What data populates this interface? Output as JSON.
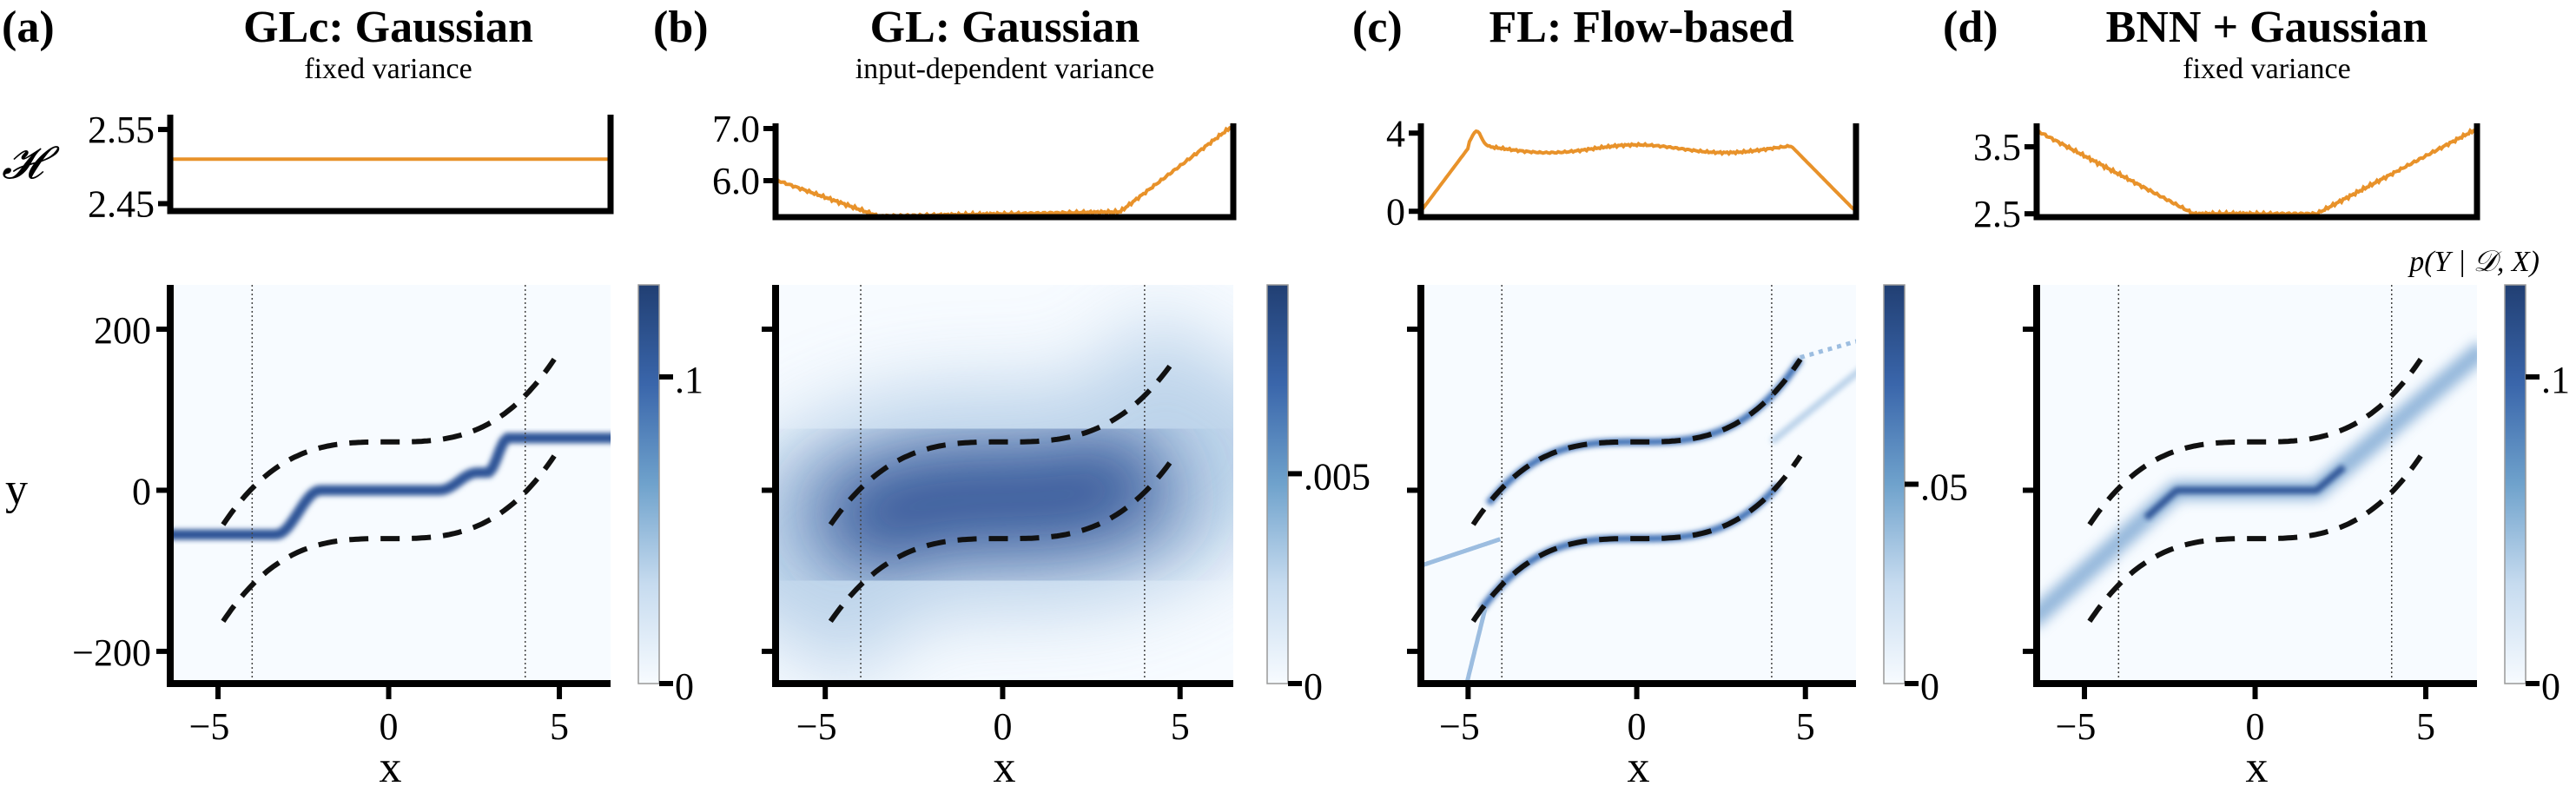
{
  "figure": {
    "colors": {
      "entropy": "#e8922a",
      "axis": "#000000",
      "dashed": "#111111",
      "cmap_low": "#f7fbff",
      "cmap_high": "#213f73"
    },
    "entropy_axis_label": "𝓗",
    "y_axis_label": "y",
    "x_axis_label": "x",
    "colorbar_title": "p(Y | 𝒟, X)"
  },
  "chart_data": [
    {
      "type": "heatmap",
      "panel_label": "(a)",
      "title": "GLc: Gaussian",
      "subtitle": "fixed variance",
      "entropy": {
        "yticks": [
          "2.55",
          "2.45"
        ],
        "ytick_values": [
          2.55,
          2.45
        ],
        "ylim": [
          2.44,
          2.57
        ],
        "profile": "constant",
        "level": 2.51
      },
      "xlim": [
        -6.4,
        6.5
      ],
      "ylim": [
        -240,
        255
      ],
      "xticks": [
        -5,
        0,
        5
      ],
      "xtick_labels": [
        "−5",
        "0",
        "5"
      ],
      "yticks": [
        200,
        0,
        -200
      ],
      "ytick_labels": [
        "200",
        "0",
        "−200"
      ],
      "train_region": [
        -4,
        4
      ],
      "colorbar": {
        "ticks": [
          0,
          0.1
        ],
        "tick_labels": [
          "0",
          ".1"
        ],
        "max": 0.13
      },
      "density": "narrow-step"
    },
    {
      "type": "heatmap",
      "panel_label": "(b)",
      "title": "GL: Gaussian",
      "subtitle": "input-dependent variance",
      "entropy": {
        "yticks": [
          "7.0",
          "6.0"
        ],
        "ytick_values": [
          7.0,
          6.0
        ],
        "ylim": [
          5.3,
          7.1
        ],
        "profile": "bathtub-right"
      },
      "xlim": [
        -6.4,
        6.5
      ],
      "ylim": [
        -240,
        255
      ],
      "xticks": [
        -5,
        0,
        5
      ],
      "xtick_labels": [
        "−5",
        "0",
        "5"
      ],
      "yticks": [
        200,
        0,
        -200
      ],
      "ytick_labels": [
        "",
        "",
        ""
      ],
      "train_region": [
        -4,
        4
      ],
      "colorbar": {
        "ticks": [
          0,
          0.005
        ],
        "tick_labels": [
          "0",
          ".005"
        ],
        "max": 0.0095
      },
      "density": "wide-band"
    },
    {
      "type": "heatmap",
      "panel_label": "(c)",
      "title": "FL: Flow-based",
      "subtitle": "",
      "entropy": {
        "yticks": [
          "4",
          "0"
        ],
        "ytick_values": [
          4,
          0
        ],
        "ylim": [
          -0.3,
          4.5
        ],
        "profile": "plateau"
      },
      "xlim": [
        -6.4,
        6.5
      ],
      "ylim": [
        -240,
        255
      ],
      "xticks": [
        -5,
        0,
        5
      ],
      "xtick_labels": [
        "−5",
        "0",
        "5"
      ],
      "yticks": [
        200,
        0,
        -200
      ],
      "ytick_labels": [
        "",
        "",
        ""
      ],
      "train_region": [
        -4,
        4
      ],
      "colorbar": {
        "ticks": [
          0,
          0.05
        ],
        "tick_labels": [
          "0",
          ".05"
        ],
        "max": 0.1
      },
      "density": "bimodal"
    },
    {
      "type": "heatmap",
      "panel_label": "(d)",
      "title": "BNN + Gaussian",
      "subtitle": "fixed variance",
      "entropy": {
        "yticks": [
          "3.5",
          "2.5"
        ],
        "ytick_values": [
          3.5,
          2.5
        ],
        "ylim": [
          2.45,
          3.85
        ],
        "profile": "bathtub"
      },
      "xlim": [
        -6.4,
        6.5
      ],
      "ylim": [
        -240,
        255
      ],
      "xticks": [
        -5,
        0,
        5
      ],
      "xtick_labels": [
        "−5",
        "0",
        "5"
      ],
      "yticks": [
        200,
        0,
        -200
      ],
      "ytick_labels": [
        "",
        "",
        ""
      ],
      "train_region": [
        -4,
        4
      ],
      "colorbar": {
        "ticks": [
          0,
          0.1
        ],
        "tick_labels": [
          "0",
          ".1"
        ],
        "max": 0.13
      },
      "density": "linear-band"
    }
  ]
}
